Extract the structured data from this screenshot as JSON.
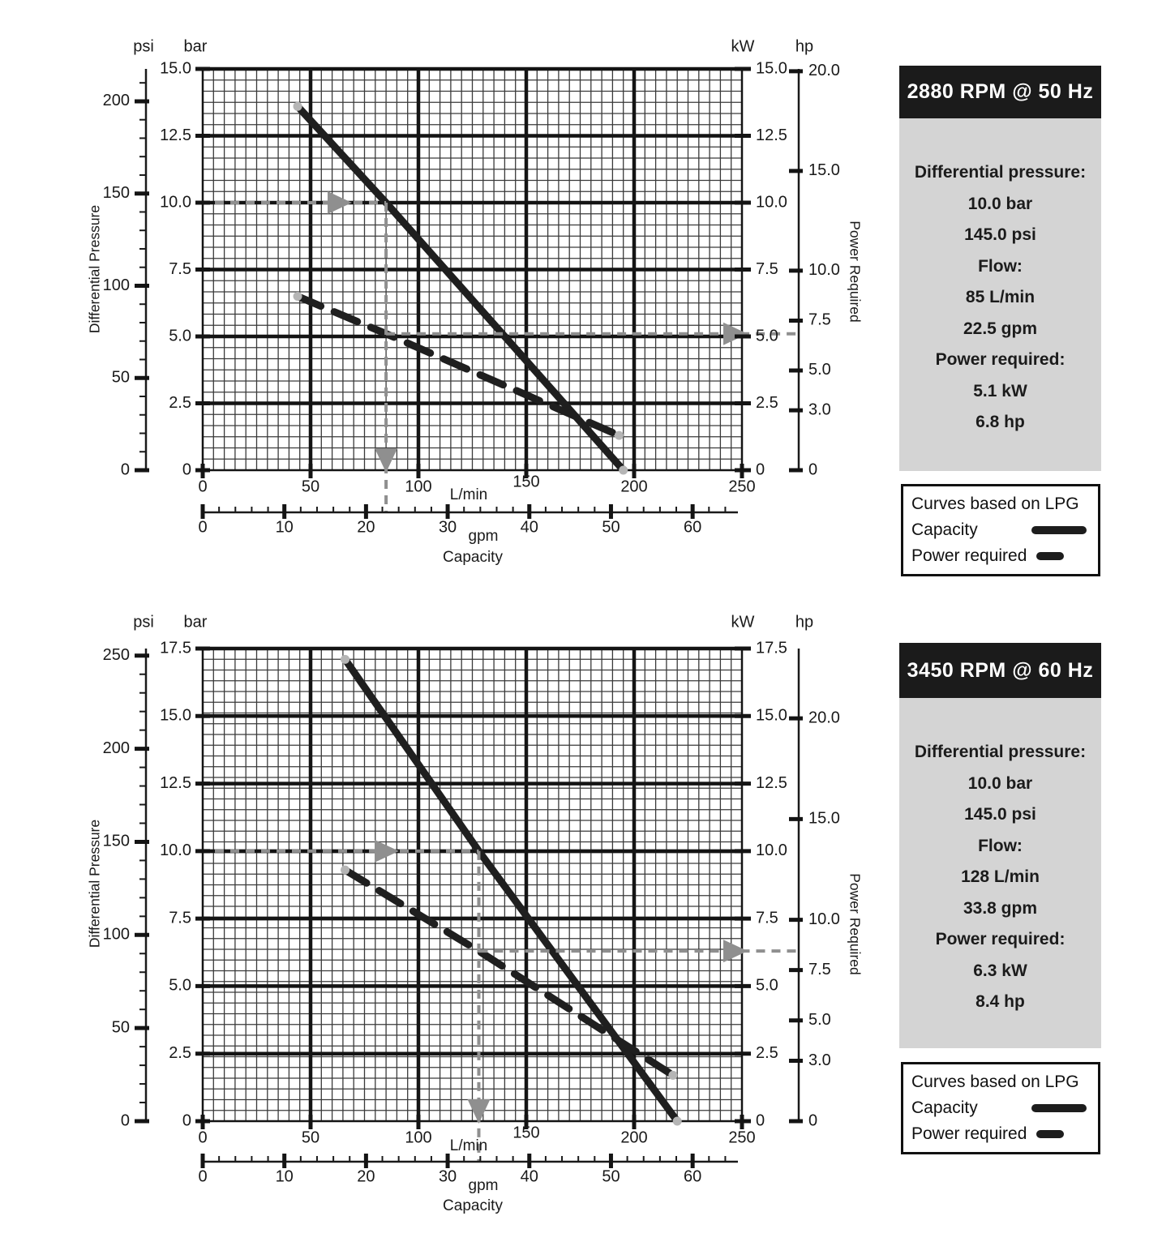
{
  "colors": {
    "curve": "#1f1f1f",
    "grid_minor": "#3a3a3a",
    "grid_major": "#141414",
    "guide_gray": "#8f8f8f",
    "endpoint_dot": "#b5b5b5",
    "panel_bg": "#d4d4d4",
    "panel_header_bg": "#1b1b1b",
    "panel_header_fg": "#ffffff"
  },
  "chart_data": [
    {
      "type": "line",
      "title": "2880 RPM @ 50 Hz",
      "x": {
        "primary_unit": "L/min",
        "primary_ticks": [
          "0",
          "50",
          "100",
          "150",
          "200",
          "250"
        ],
        "secondary_unit": "gpm",
        "secondary_ticks": [
          "0",
          "10",
          "20",
          "30",
          "40",
          "50",
          "60"
        ],
        "title": "Capacity"
      },
      "y_left": {
        "label": "Differential Pressure",
        "units": [
          "psi",
          "bar"
        ],
        "bar_ticks": [
          "15.0",
          "12.5",
          "10.0",
          "7.5",
          "5.0",
          "2.5",
          "0"
        ],
        "psi_ticks": [
          "200",
          "150",
          "100",
          "50",
          "0"
        ]
      },
      "y_right": {
        "label": "Power Required",
        "units": [
          "kW",
          "hp"
        ],
        "kw_ticks": [
          "15.0",
          "12.5",
          "10.0",
          "7.5",
          "5.0",
          "2.5",
          "0"
        ],
        "hp_ticks": [
          "20.0",
          "15.0",
          "10.0",
          "7.5",
          "5.0",
          "3.0",
          "0"
        ]
      },
      "series": [
        {
          "name": "Capacity",
          "style": "solid",
          "x_unit": "L/min",
          "y_unit": "bar",
          "points": [
            [
              44,
              13.6
            ],
            [
              85,
              10.0
            ],
            [
              195,
              0
            ]
          ]
        },
        {
          "name": "Power required",
          "style": "dashed",
          "x_unit": "L/min",
          "y_unit": "kW",
          "points": [
            [
              44,
              6.5
            ],
            [
              85,
              5.1
            ],
            [
              193,
              1.3
            ]
          ]
        }
      ],
      "operating_point": {
        "pressure_bar": 10.0,
        "pressure_psi": 145.0,
        "flow_lmin": 85,
        "flow_gpm": 22.5,
        "power_kw": 5.1,
        "power_hp": 6.8
      }
    },
    {
      "type": "line",
      "title": "3450 RPM @ 60 Hz",
      "x": {
        "primary_unit": "L/min",
        "primary_ticks": [
          "0",
          "50",
          "100",
          "150",
          "200",
          "250"
        ],
        "secondary_unit": "gpm",
        "secondary_ticks": [
          "0",
          "10",
          "20",
          "30",
          "40",
          "50",
          "60"
        ],
        "title": "Capacity"
      },
      "y_left": {
        "label": "Differential Pressure",
        "units": [
          "psi",
          "bar"
        ],
        "bar_ticks": [
          "17.5",
          "15.0",
          "12.5",
          "10.0",
          "7.5",
          "5.0",
          "2.5",
          "0"
        ],
        "psi_ticks": [
          "250",
          "200",
          "150",
          "100",
          "50",
          "0"
        ]
      },
      "y_right": {
        "label": "Power Required",
        "units": [
          "kW",
          "hp"
        ],
        "kw_ticks": [
          "17.5",
          "15.0",
          "12.5",
          "10.0",
          "7.5",
          "5.0",
          "2.5",
          "0"
        ],
        "hp_ticks": [
          "20.0",
          "15.0",
          "10.0",
          "7.5",
          "5.0",
          "3.0",
          "0"
        ]
      },
      "series": [
        {
          "name": "Capacity",
          "style": "solid",
          "x_unit": "L/min",
          "y_unit": "bar",
          "points": [
            [
              66,
              17.1
            ],
            [
              128,
              10.0
            ],
            [
              220,
              0
            ]
          ]
        },
        {
          "name": "Power required",
          "style": "dashed",
          "x_unit": "L/min",
          "y_unit": "kW",
          "points": [
            [
              66,
              9.3
            ],
            [
              128,
              6.3
            ],
            [
              218,
              1.7
            ]
          ]
        }
      ],
      "operating_point": {
        "pressure_bar": 10.0,
        "pressure_psi": 145.0,
        "flow_lmin": 128,
        "flow_gpm": 33.8,
        "power_kw": 6.3,
        "power_hp": 8.4
      }
    }
  ],
  "info_panels": [
    {
      "title": "2880 RPM @ 50 Hz",
      "rows": [
        {
          "text": "Differential pressure:",
          "bold": true
        },
        {
          "text": "10.0 bar",
          "bold": false
        },
        {
          "text": "145.0 psi",
          "bold": false
        },
        {
          "text": "Flow:",
          "bold": true
        },
        {
          "text": "85 L/min",
          "bold": false
        },
        {
          "text": "22.5 gpm",
          "bold": false
        },
        {
          "text": "Power required:",
          "bold": true
        },
        {
          "text": "5.1 kW",
          "bold": false
        },
        {
          "text": "6.8 hp",
          "bold": false
        }
      ]
    },
    {
      "title": "3450 RPM @ 60 Hz",
      "rows": [
        {
          "text": "Differential pressure:",
          "bold": true
        },
        {
          "text": "10.0 bar",
          "bold": false
        },
        {
          "text": "145.0 psi",
          "bold": false
        },
        {
          "text": "Flow:",
          "bold": true
        },
        {
          "text": "128 L/min",
          "bold": false
        },
        {
          "text": "33.8 gpm",
          "bold": false
        },
        {
          "text": "Power required:",
          "bold": true
        },
        {
          "text": "6.3 kW",
          "bold": false
        },
        {
          "text": "8.4 hp",
          "bold": false
        }
      ]
    }
  ],
  "legend": {
    "title": "Curves based on LPG",
    "items": [
      {
        "label": "Capacity",
        "swatch": "long"
      },
      {
        "label": "Power required",
        "swatch": "short"
      }
    ]
  }
}
